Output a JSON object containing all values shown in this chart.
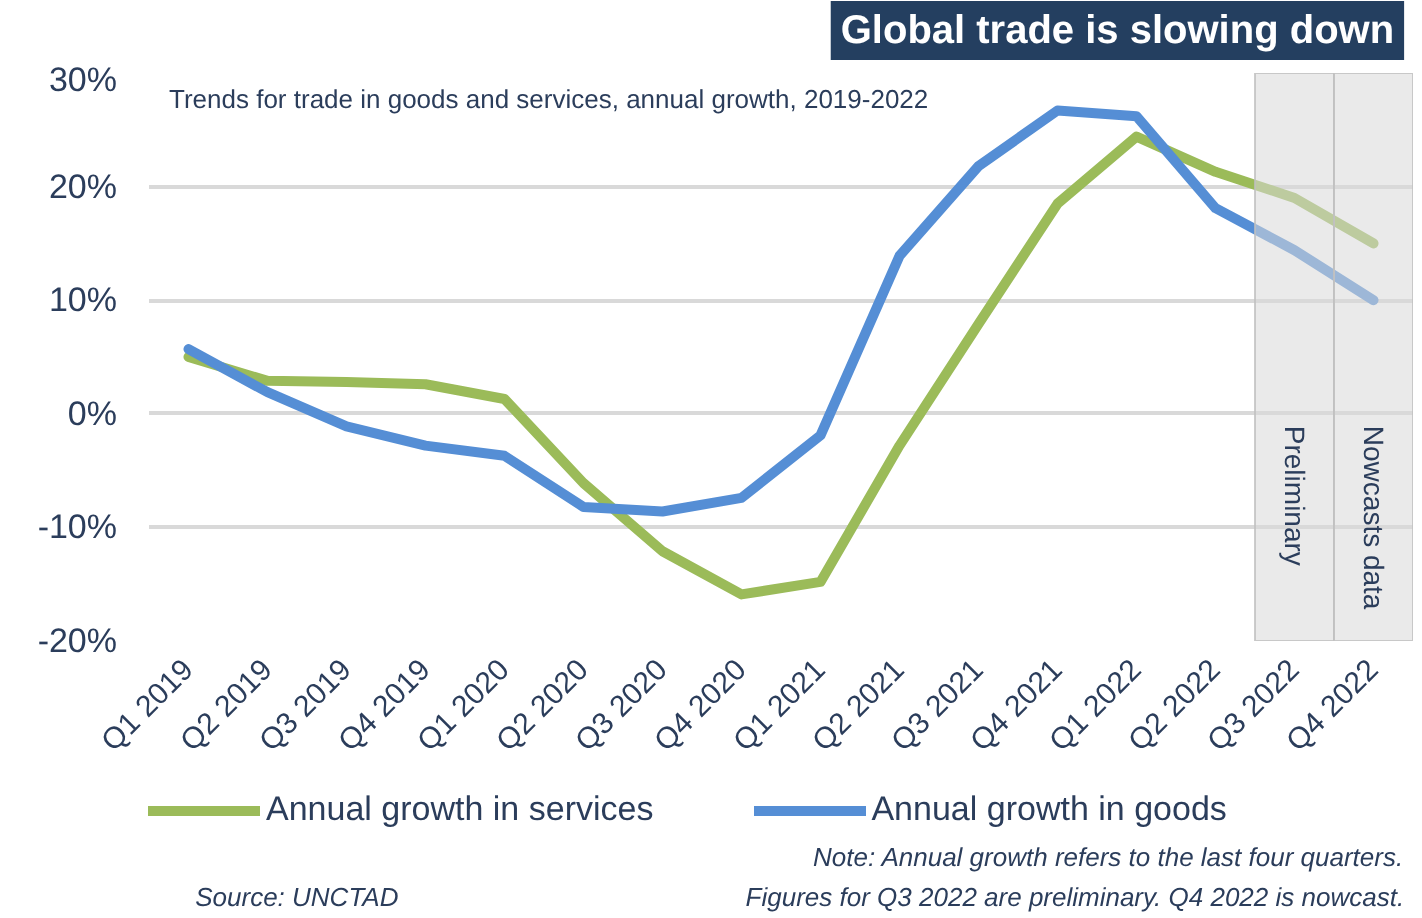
{
  "chart_data": {
    "type": "line",
    "title": "Global trade is slowing down",
    "subtitle": "Trends for trade in goods and services, annual growth, 2019-2022",
    "categories": [
      "Q1 2019",
      "Q2 2019",
      "Q3 2019",
      "Q4 2019",
      "Q1 2020",
      "Q2 2020",
      "Q3 2020",
      "Q4 2020",
      "Q1 2021",
      "Q2 2021",
      "Q3 2021",
      "Q4 2021",
      "Q1 2022",
      "Q2 2022",
      "Q3 2022",
      "Q4 2022"
    ],
    "series": [
      {
        "name": "Annual growth in services",
        "color": "#9bbb59",
        "values": [
          5.0,
          2.9,
          2.8,
          2.6,
          1.3,
          -6.1,
          -12.1,
          -15.9,
          -14.8,
          -2.8,
          7.9,
          18.5,
          24.4,
          21.3,
          19.0,
          15.0
        ]
      },
      {
        "name": "Annual growth in goods",
        "color": "#558ed5",
        "values": [
          5.7,
          1.9,
          -1.1,
          -2.8,
          -3.7,
          -8.2,
          -8.6,
          -7.4,
          -1.9,
          13.9,
          21.8,
          26.7,
          26.2,
          18.1,
          14.4,
          10.0
        ]
      }
    ],
    "ylim": [
      -20,
      30
    ],
    "yticks": [
      {
        "value": -20,
        "label": "-20%"
      },
      {
        "value": -10,
        "label": "-10%"
      },
      {
        "value": 0,
        "label": "0%"
      },
      {
        "value": 10,
        "label": "10%"
      },
      {
        "value": 20,
        "label": "20%"
      },
      {
        "value": 30,
        "label": "30%"
      }
    ],
    "grid": "y",
    "legend": "bottom",
    "line_style": "solid",
    "bands": [
      {
        "axis": "x",
        "from": "Q3 2022",
        "to": "Q3 2022",
        "label": "Preliminary",
        "color": "#d9d9d9"
      },
      {
        "axis": "x",
        "from": "Q4 2022",
        "to": "Q4 2022",
        "label": "Nowcasts data",
        "color": "#d9d9d9"
      }
    ],
    "annotations": [
      "Note: Annual growth refers to the last four quarters.",
      "Figures for Q3 2022 are preliminary. Q4 2022 is nowcast.",
      "Source: UNCTAD"
    ]
  }
}
